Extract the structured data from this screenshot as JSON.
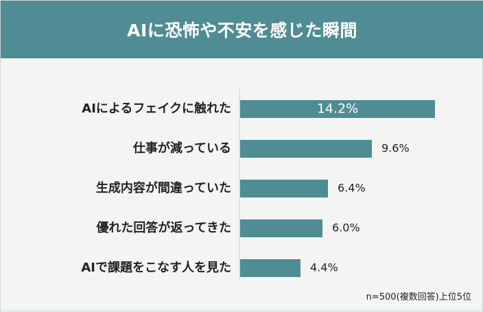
{
  "header": {
    "title": "AIに恐怖や不安を感じた瞬間"
  },
  "note": "n=500(複数回答)上位5位",
  "colors": {
    "header": "#4f8c93",
    "bar": "#4f8c93",
    "background": "#f4f4f4"
  },
  "chart_data": {
    "type": "bar",
    "orientation": "horizontal",
    "title": "AIに恐怖や不安を感じた瞬間",
    "categories": [
      "AIによるフェイクに触れた",
      "仕事が減っている",
      "生成内容が間違っていた",
      "優れた回答が返ってきた",
      "AIで課題をこなす人を見た"
    ],
    "values": [
      14.2,
      9.6,
      6.4,
      6.0,
      4.4
    ],
    "value_labels": [
      "14.2%",
      "9.6%",
      "6.4%",
      "6.0%",
      "4.4%"
    ],
    "unit": "%",
    "xlim": [
      0,
      14.2
    ],
    "grid": false
  }
}
